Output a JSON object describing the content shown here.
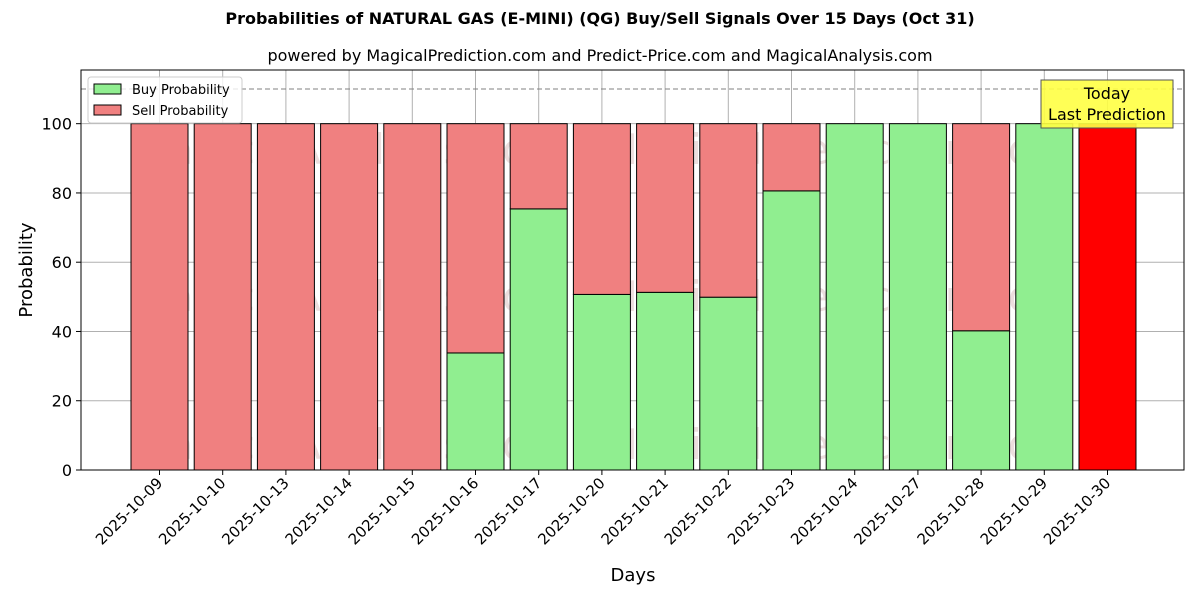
{
  "chart_data": {
    "type": "bar",
    "stacked": true,
    "title": "Probabilities of NATURAL GAS (E-MINI) (QG) Buy/Sell Signals Over 15 Days (Oct 31)",
    "subtitle": "powered by MagicalPrediction.com and Predict-Price.com and MagicalAnalysis.com",
    "xlabel": "Days",
    "ylabel": "Probability",
    "ylim": [
      0,
      115.5
    ],
    "yticks": [
      0,
      20,
      40,
      60,
      80,
      100
    ],
    "grid": true,
    "reference_line": {
      "y": 110,
      "style": "dashed",
      "color": "#808080"
    },
    "legend": {
      "position": "upper left",
      "entries": [
        "Buy Probability",
        "Sell Probability"
      ]
    },
    "categories": [
      "2025-10-09",
      "2025-10-10",
      "2025-10-13",
      "2025-10-14",
      "2025-10-15",
      "2025-10-16",
      "2025-10-17",
      "2025-10-20",
      "2025-10-21",
      "2025-10-22",
      "2025-10-23",
      "2025-10-24",
      "2025-10-27",
      "2025-10-28",
      "2025-10-29",
      "2025-10-30"
    ],
    "series": [
      {
        "name": "Buy Probability",
        "color": "#90ee90",
        "values": [
          0,
          0,
          0,
          0,
          0,
          33.8,
          75.4,
          50.7,
          51.3,
          49.9,
          80.6,
          100,
          100,
          40.2,
          100,
          0
        ]
      },
      {
        "name": "Sell Probability",
        "color": "#f08080",
        "values": [
          100,
          100,
          100,
          100,
          100,
          66.2,
          24.6,
          49.3,
          48.7,
          50.1,
          19.4,
          0,
          0,
          59.8,
          0,
          100
        ]
      }
    ],
    "highlight": {
      "category": "2025-10-30",
      "color": "#ff0000",
      "label": "Today\nLast Prediction"
    },
    "watermarks": [
      "MagicalAnalysis.com",
      "MagicalPrediction.com"
    ]
  },
  "header": {
    "title": "Probabilities of NATURAL GAS (E-MINI) (QG) Buy/Sell Signals Over 15 Days (Oct 31)",
    "subtitle": "powered by MagicalPrediction.com and Predict-Price.com and MagicalAnalysis.com"
  },
  "annotation": {
    "line1": "Today",
    "line2": "Last Prediction"
  },
  "legend": {
    "buy": "Buy Probability",
    "sell": "Sell Probability"
  },
  "axes": {
    "xlabel": "Days",
    "ylabel": "Probability"
  },
  "colors": {
    "buy": "#90ee90",
    "sell": "#f08080",
    "today": "#ff0000",
    "annotation_bg": "#ffff44"
  }
}
